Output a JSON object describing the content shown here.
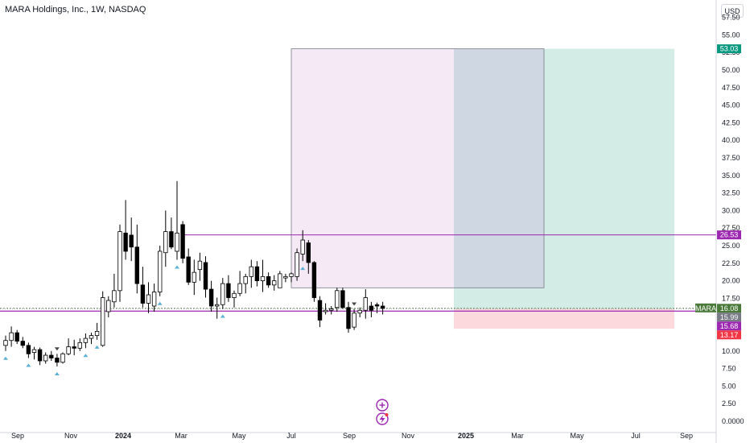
{
  "header": {
    "title": "MARA Holdings, Inc., 1W, NASDAQ",
    "currency": "USD"
  },
  "chart_data": {
    "type": "candlestick",
    "ticker": "MARA",
    "x_labels": [
      "Sep",
      "Nov",
      "2024",
      "Mar",
      "May",
      "Jul",
      "Sep",
      "Nov",
      "2025",
      "Mar",
      "May",
      "Jul",
      "Sep"
    ],
    "y_ticks": [
      "0.0000",
      "2.50",
      "5.00",
      "7.50",
      "10.00",
      "12.50",
      "15.00",
      "17.50",
      "20.00",
      "22.50",
      "25.00",
      "27.50",
      "30.00",
      "32.50",
      "35.00",
      "37.50",
      "40.00",
      "42.50",
      "45.00",
      "47.50",
      "50.00",
      "52.50",
      "55.00",
      "57.50"
    ],
    "ylim": [
      0,
      57.5
    ],
    "candles": [
      [
        10.8,
        12.2,
        10.0,
        11.5
      ],
      [
        11.5,
        13.5,
        10.6,
        12.6
      ],
      [
        12.6,
        13.0,
        11.0,
        11.4
      ],
      [
        11.4,
        12.0,
        10.4,
        10.8
      ],
      [
        10.8,
        11.2,
        9.0,
        9.6
      ],
      [
        9.8,
        10.6,
        8.8,
        10.2
      ],
      [
        10.2,
        10.5,
        8.0,
        8.6
      ],
      [
        8.6,
        9.8,
        8.2,
        9.4
      ],
      [
        9.4,
        10.0,
        8.6,
        9.0
      ],
      [
        9.0,
        9.6,
        7.8,
        8.4
      ],
      [
        8.4,
        9.8,
        8.2,
        9.6
      ],
      [
        9.6,
        11.8,
        9.4,
        10.6
      ],
      [
        10.6,
        11.6,
        9.4,
        10.4
      ],
      [
        10.4,
        11.8,
        10.0,
        11.2
      ],
      [
        11.2,
        12.5,
        10.4,
        11.8
      ],
      [
        11.8,
        12.6,
        11.0,
        12.2
      ],
      [
        12.2,
        14.0,
        11.6,
        12.8
      ],
      [
        10.8,
        18.5,
        10.6,
        17.6
      ],
      [
        15.6,
        17.8,
        14.8,
        17.2
      ],
      [
        17.0,
        21.0,
        16.2,
        18.6
      ],
      [
        18.6,
        28.0,
        17.0,
        27.0
      ],
      [
        26.8,
        31.5,
        23.0,
        24.2
      ],
      [
        26.5,
        29.0,
        22.8,
        24.8
      ],
      [
        24.8,
        28.0,
        18.2,
        19.6
      ],
      [
        19.4,
        22.0,
        16.2,
        16.8
      ],
      [
        16.8,
        19.8,
        15.4,
        18.0
      ],
      [
        16.4,
        19.6,
        15.6,
        18.4
      ],
      [
        18.4,
        25.0,
        17.8,
        24.2
      ],
      [
        24.0,
        30.0,
        22.0,
        27.0
      ],
      [
        27.0,
        29.0,
        24.5,
        24.8
      ],
      [
        24.2,
        34.2,
        23.0,
        26.8
      ],
      [
        28.0,
        28.5,
        22.5,
        23.2
      ],
      [
        23.4,
        24.6,
        19.4,
        19.8
      ],
      [
        19.8,
        23.0,
        18.0,
        21.2
      ],
      [
        21.6,
        24.0,
        20.0,
        22.8
      ],
      [
        22.6,
        23.5,
        17.6,
        18.8
      ],
      [
        18.8,
        20.0,
        15.6,
        16.4
      ],
      [
        16.4,
        17.6,
        14.6,
        16.6
      ],
      [
        16.6,
        20.4,
        16.0,
        19.6
      ],
      [
        19.6,
        20.8,
        17.0,
        17.6
      ],
      [
        17.6,
        18.6,
        16.2,
        18.2
      ],
      [
        18.2,
        21.4,
        17.8,
        19.6
      ],
      [
        19.6,
        21.0,
        18.2,
        20.6
      ],
      [
        20.6,
        23.0,
        19.0,
        22.0
      ],
      [
        22.0,
        22.8,
        19.2,
        20.0
      ],
      [
        20.0,
        23.0,
        18.4,
        20.6
      ],
      [
        20.6,
        21.2,
        19.0,
        19.4
      ],
      [
        19.4,
        20.8,
        18.6,
        20.0
      ],
      [
        19.0,
        21.4,
        19.0,
        21.0
      ],
      [
        20.4,
        21.0,
        19.8,
        20.6
      ],
      [
        20.6,
        21.2,
        19.8,
        21.0
      ],
      [
        20.6,
        24.6,
        20.0,
        24.0
      ],
      [
        23.8,
        27.2,
        22.8,
        25.8
      ],
      [
        25.4,
        25.8,
        21.0,
        22.6
      ],
      [
        22.6,
        22.8,
        17.0,
        17.6
      ],
      [
        17.2,
        17.8,
        13.4,
        14.4
      ],
      [
        15.6,
        16.8,
        15.2,
        15.8
      ],
      [
        15.8,
        16.4,
        15.2,
        16.0
      ],
      [
        16.2,
        19.0,
        15.6,
        18.6
      ],
      [
        18.6,
        19.0,
        16.0,
        16.2
      ],
      [
        16.2,
        17.0,
        12.6,
        13.2
      ],
      [
        13.4,
        16.0,
        13.0,
        15.4
      ],
      [
        15.4,
        16.2,
        14.8,
        15.8
      ],
      [
        15.8,
        18.8,
        14.6,
        17.6
      ],
      [
        16.4,
        17.0,
        14.8,
        15.8
      ],
      [
        16.6,
        16.9,
        15.4,
        16.4
      ],
      [
        16.4,
        17.0,
        15.2,
        16.08
      ]
    ],
    "position": {
      "type": "long",
      "entry": 15.99,
      "target": 53.03,
      "stop": 13.17
    },
    "reference_box": {
      "top": 53.03,
      "bottom": 19.0
    },
    "horizontal_line": 26.53,
    "current_price": 16.08,
    "price_labels": [
      {
        "value": 53.03,
        "text": "53.03",
        "color": "#089981"
      },
      {
        "value": 26.53,
        "text": "26.53",
        "color": "#9c27b0"
      },
      {
        "value": 16.08,
        "text": "16.08",
        "color": "#4a7a3a"
      },
      {
        "value": 15.99,
        "text": "15.99",
        "color": "#787b86"
      },
      {
        "value": 15.68,
        "text": "15.68",
        "color": "#9c27b0"
      },
      {
        "value": 13.17,
        "text": "13.17",
        "color": "#f23645"
      }
    ],
    "markers": [
      {
        "bar": 0,
        "dir": "up"
      },
      {
        "bar": 4,
        "dir": "up"
      },
      {
        "bar": 9,
        "dir": "down"
      },
      {
        "bar": 9,
        "dir": "up"
      },
      {
        "bar": 14,
        "dir": "up"
      },
      {
        "bar": 16,
        "dir": "up"
      },
      {
        "bar": 27,
        "dir": "up"
      },
      {
        "bar": 30,
        "dir": "up"
      },
      {
        "bar": 38,
        "dir": "up"
      },
      {
        "bar": 52,
        "dir": "up"
      },
      {
        "bar": 61,
        "dir": "down"
      }
    ],
    "colors": {
      "up_body": "#ffffff",
      "down_body": "#000000",
      "wick": "#000000",
      "reference_fill": "#f3e5f5",
      "target_fill": "#d3ece5",
      "stop_fill": "#fbd9dc",
      "line": "#9c27b0",
      "marker": "#5ab0d6"
    }
  }
}
